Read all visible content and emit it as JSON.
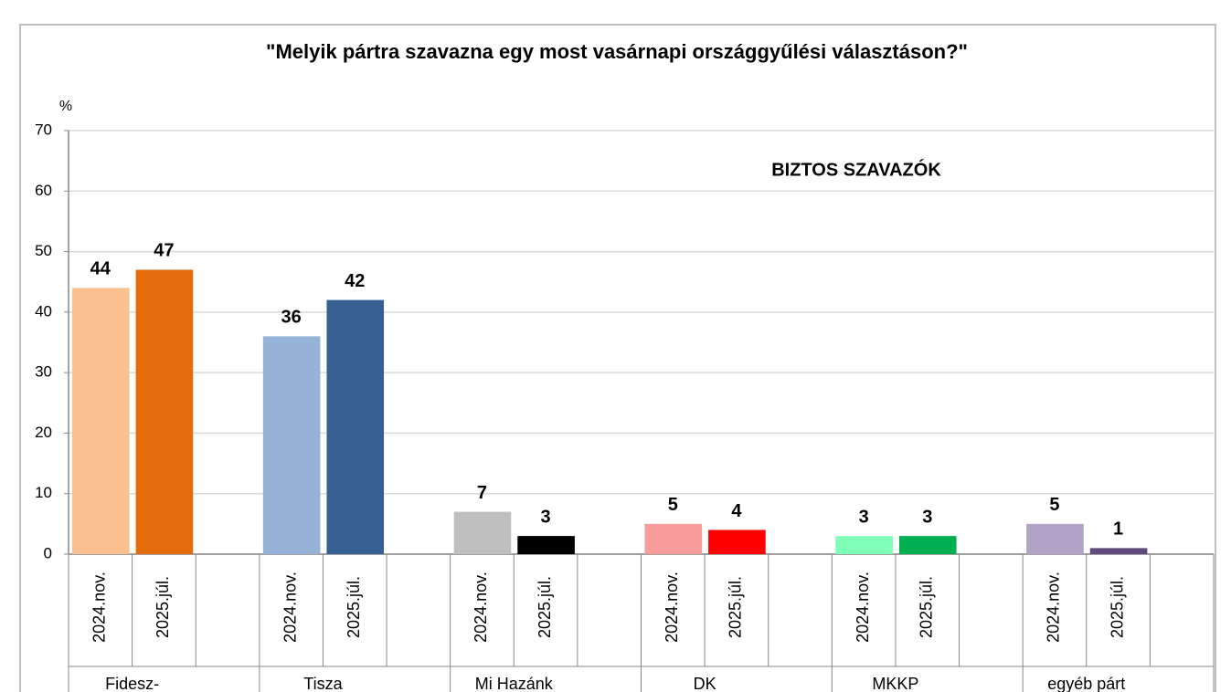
{
  "chart_data": {
    "type": "bar",
    "title": "\"Melyik pártra szavazna egy most vasárnapi országgyűlési választáson?\"",
    "annotation": "BIZTOS SZAVAZÓK",
    "y_label": "%",
    "ylim": [
      0,
      70
    ],
    "yticks": [
      0,
      10,
      20,
      30,
      40,
      50,
      60,
      70
    ],
    "grid": true,
    "groups": [
      {
        "name": "Fidesz-",
        "bars": [
          {
            "category": "2024.nov.",
            "value": 44,
            "color": "#fac090"
          },
          {
            "category": "2025.júl.",
            "value": 47,
            "color": "#e46c0a"
          }
        ]
      },
      {
        "name": "Tisza",
        "bars": [
          {
            "category": "2024.nov.",
            "value": 36,
            "color": "#95b3d7"
          },
          {
            "category": "2025.júl.",
            "value": 42,
            "color": "#376092"
          }
        ]
      },
      {
        "name": "Mi Hazánk",
        "bars": [
          {
            "category": "2024.nov.",
            "value": 7,
            "color": "#bfbfbf"
          },
          {
            "category": "2025.júl.",
            "value": 3,
            "color": "#000000"
          }
        ]
      },
      {
        "name": "DK",
        "bars": [
          {
            "category": "2024.nov.",
            "value": 5,
            "color": "#f79b9b"
          },
          {
            "category": "2025.júl.",
            "value": 4,
            "color": "#ff0000"
          }
        ]
      },
      {
        "name": "MKKP",
        "bars": [
          {
            "category": "2024.nov.",
            "value": 3,
            "color": "#7fffb8"
          },
          {
            "category": "2025.júl.",
            "value": 3,
            "color": "#00b050"
          }
        ]
      },
      {
        "name": "egyéb párt",
        "bars": [
          {
            "category": "2024.nov.",
            "value": 5,
            "color": "#b3a2c7"
          },
          {
            "category": "2025.júl.",
            "value": 1,
            "color": "#604a7b"
          }
        ]
      }
    ]
  }
}
